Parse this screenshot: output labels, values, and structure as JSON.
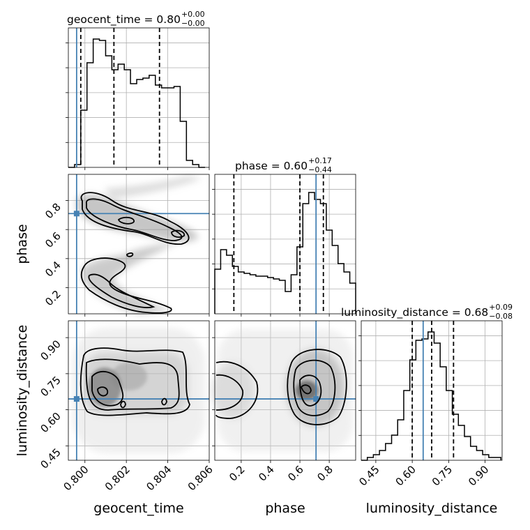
{
  "chart_data": {
    "type": "corner",
    "parameters": [
      {
        "name": "geocent_time",
        "range": [
          0.7992,
          0.806
        ],
        "ticks": [
          0.8,
          0.802,
          0.804,
          0.806
        ],
        "tick_labels": [
          "0.800",
          "0.802",
          "0.804",
          "0.806"
        ],
        "truth": 0.7996
      },
      {
        "name": "phase",
        "range": [
          0.02,
          0.98
        ],
        "ticks": [
          0.2,
          0.4,
          0.6,
          0.8
        ],
        "tick_labels": [
          "0.2",
          "0.4",
          "0.6",
          "0.8"
        ],
        "truth": 0.71
      },
      {
        "name": "luminosity_distance",
        "range": [
          0.39,
          0.97
        ],
        "ticks": [
          0.45,
          0.6,
          0.75,
          0.9
        ],
        "tick_labels": [
          "0.45",
          "0.60",
          "0.75",
          "0.90"
        ],
        "truth": 0.645
      }
    ],
    "titles": [
      {
        "main": "geocent_time = 0.80",
        "sup": "+0.00",
        "sub": "−0.00"
      },
      {
        "main": "phase = 0.60",
        "sup": "+0.17",
        "sub": "−0.44"
      },
      {
        "main": "luminosity_distance = 0.68",
        "sup": "+0.09",
        "sub": "−0.08"
      }
    ],
    "marginals": [
      {
        "parameter": "geocent_time",
        "bin_edges": [
          0.7992,
          0.7995,
          0.7998,
          0.8001,
          0.8004,
          0.8007,
          0.801,
          0.8013,
          0.8016,
          0.8019,
          0.8022,
          0.8025,
          0.8028,
          0.8031,
          0.8034,
          0.8037,
          0.804,
          0.8043,
          0.8046,
          0.8049,
          0.8052,
          0.8055,
          0.8058
        ],
        "counts": [
          0,
          0.02,
          0.41,
          0.75,
          0.92,
          0.91,
          0.8,
          0.7,
          0.74,
          0.7,
          0.6,
          0.63,
          0.64,
          0.66,
          0.59,
          0.57,
          0.57,
          0.58,
          0.33,
          0.05,
          0.02,
          0.0
        ],
        "quantiles": [
          0.7998,
          0.8014,
          0.8036
        ]
      },
      {
        "parameter": "phase",
        "bin_edges": [
          0.02,
          0.06,
          0.1,
          0.14,
          0.18,
          0.22,
          0.26,
          0.3,
          0.34,
          0.38,
          0.42,
          0.46,
          0.5,
          0.54,
          0.58,
          0.62,
          0.66,
          0.7,
          0.74,
          0.78,
          0.82,
          0.86,
          0.9,
          0.94,
          0.98
        ],
        "counts": [
          0.32,
          0.46,
          0.42,
          0.34,
          0.3,
          0.29,
          0.28,
          0.27,
          0.27,
          0.26,
          0.25,
          0.24,
          0.16,
          0.28,
          0.48,
          0.79,
          0.87,
          0.82,
          0.79,
          0.6,
          0.49,
          0.36,
          0.3,
          0.22
        ],
        "quantiles": [
          0.15,
          0.6,
          0.76
        ]
      },
      {
        "parameter": "luminosity_distance",
        "bin_edges": [
          0.39,
          0.415,
          0.44,
          0.465,
          0.49,
          0.515,
          0.54,
          0.565,
          0.59,
          0.615,
          0.64,
          0.665,
          0.69,
          0.715,
          0.74,
          0.765,
          0.79,
          0.815,
          0.84,
          0.865,
          0.89,
          0.915,
          0.94,
          0.965
        ],
        "counts": [
          0.0,
          0.02,
          0.04,
          0.07,
          0.12,
          0.18,
          0.29,
          0.5,
          0.72,
          0.86,
          0.87,
          0.92,
          0.84,
          0.67,
          0.5,
          0.33,
          0.25,
          0.17,
          0.1,
          0.07,
          0.04,
          0.02,
          0.02
        ],
        "quantiles": [
          0.6,
          0.68,
          0.77
        ]
      }
    ],
    "joint": [
      {
        "x": "geocent_time",
        "y": "phase",
        "style": "two-band-s-curve"
      },
      {
        "x": "geocent_time",
        "y": "luminosity_distance",
        "style": "blob"
      },
      {
        "x": "phase",
        "y": "luminosity_distance",
        "style": "two-blobs"
      }
    ],
    "grid": true,
    "truth_color": "#4682b4",
    "line_color": "#000000"
  }
}
